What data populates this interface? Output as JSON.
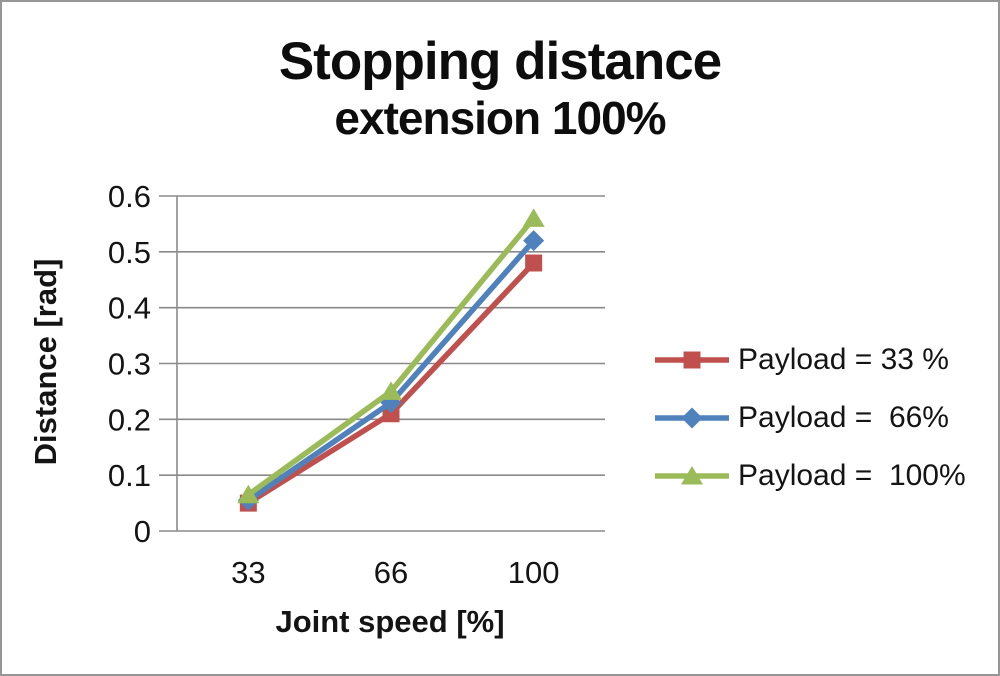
{
  "frame": {
    "background": "#ffffff",
    "border_color": "#969696"
  },
  "title": {
    "line1": "Stopping distance",
    "line2": "extension 100%"
  },
  "chart_data": {
    "type": "line",
    "title": "Stopping distance extension 100%",
    "categories": [
      "33",
      "66",
      "100"
    ],
    "series": [
      {
        "name": "Payload = 33 %",
        "values": [
          0.05,
          0.21,
          0.48
        ],
        "color": "#C0504D",
        "marker": "square"
      },
      {
        "name": "Payload =  66%",
        "values": [
          0.055,
          0.23,
          0.52
        ],
        "color": "#4F81BD",
        "marker": "diamond"
      },
      {
        "name": "Payload =  100%",
        "values": [
          0.065,
          0.25,
          0.56
        ],
        "color": "#9BBB59",
        "marker": "triangle"
      }
    ],
    "xlabel": "Joint speed [%]",
    "ylabel": "Distance [rad]",
    "ylim": [
      0,
      0.6
    ],
    "yticks": [
      0,
      0.1,
      0.2,
      0.3,
      0.4,
      0.5,
      0.6
    ],
    "ytick_labels": [
      "0",
      "0.1",
      "0.2",
      "0.3",
      "0.4",
      "0.5",
      "0.6"
    ],
    "grid": true,
    "gridline_color": "#8a8a8a",
    "axis_color": "#8a8a8a",
    "legend_position": "right"
  }
}
